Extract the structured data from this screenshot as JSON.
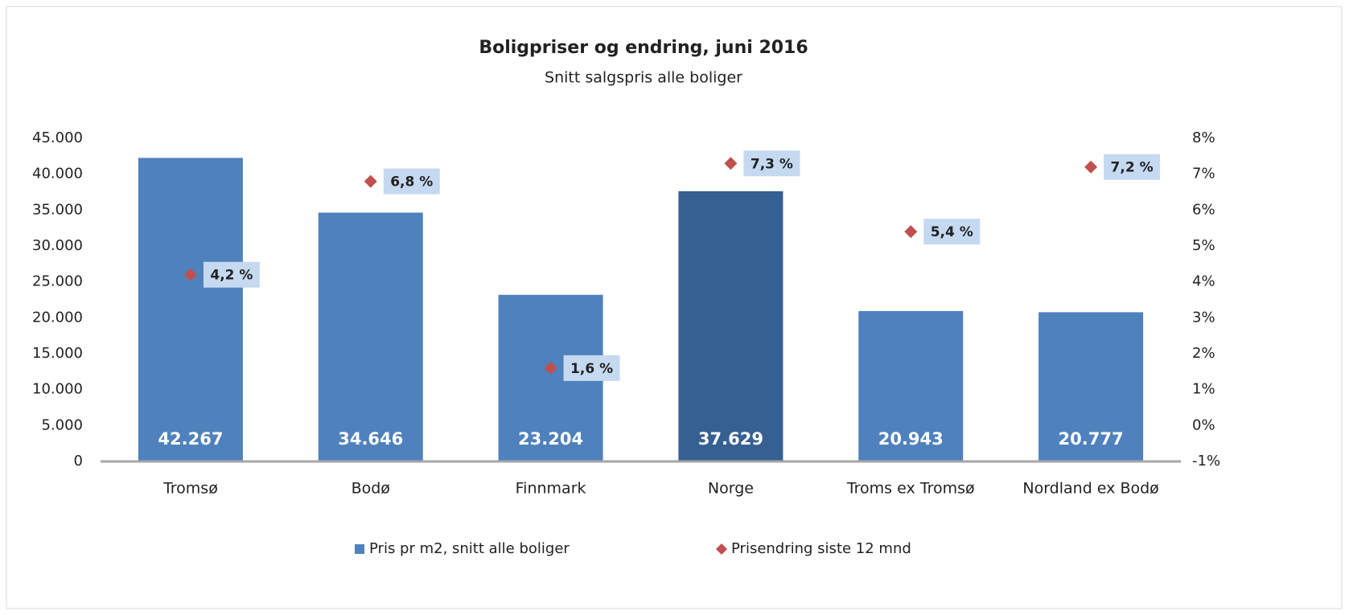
{
  "chart_data": {
    "type": "bar",
    "title": "Boligpriser og endring, juni 2016",
    "subtitle": "Snitt salgspris alle boliger",
    "categories": [
      "Tromsø",
      "Bodø",
      "Finnmark",
      "Norge",
      "Troms ex Tromsø",
      "Nordland ex Bodø"
    ],
    "series": [
      {
        "name": "Pris pr m2, snitt alle boliger",
        "type": "bar",
        "color": "#4f81bd",
        "colors": [
          "#4f81bd",
          "#4f81bd",
          "#4f81bd",
          "#366092",
          "#4f81bd",
          "#4f81bd"
        ],
        "values": [
          42267,
          34646,
          23204,
          37629,
          20943,
          20777
        ],
        "value_labels": [
          "42.267",
          "34.646",
          "23.204",
          "37.629",
          "20.943",
          "20.777"
        ]
      },
      {
        "name": "Prisendring siste 12 mnd",
        "type": "scatter",
        "axis": "y2",
        "color": "#c0504d",
        "values": [
          4.2,
          6.8,
          1.6,
          7.3,
          5.4,
          7.2
        ],
        "value_labels": [
          "4,2 %",
          "6,8 %",
          "1,6 %",
          "7,3 %",
          "5,4 %",
          "7,2 %"
        ]
      }
    ],
    "ylim": [
      0,
      45000
    ],
    "yticks": [
      0,
      {
        "value": 5000,
        "label": "5.000"
      },
      {
        "value": 10000,
        "label": "10.000"
      },
      {
        "value": 15000,
        "label": "15.000"
      },
      {
        "value": 20000,
        "label": "20.000"
      },
      {
        "value": 25000,
        "label": "25.000"
      },
      {
        "value": 30000,
        "label": "30.000"
      },
      {
        "value": 35000,
        "label": "35.000"
      },
      {
        "value": 40000,
        "label": "40.000"
      },
      {
        "value": 45000,
        "label": "45.000"
      }
    ],
    "y2lim": [
      -1,
      8
    ],
    "y2ticks": [
      {
        "value": -1,
        "label": "-1%"
      },
      {
        "value": 0,
        "label": "0%"
      },
      {
        "value": 1,
        "label": "1%"
      },
      {
        "value": 2,
        "label": "2%"
      },
      {
        "value": 3,
        "label": "3%"
      },
      {
        "value": 4,
        "label": "4%"
      },
      {
        "value": 5,
        "label": "5%"
      },
      {
        "value": 6,
        "label": "6%"
      },
      {
        "value": 7,
        "label": "7%"
      },
      {
        "value": 8,
        "label": "8%"
      }
    ],
    "grid": false,
    "legend": "bottom"
  }
}
